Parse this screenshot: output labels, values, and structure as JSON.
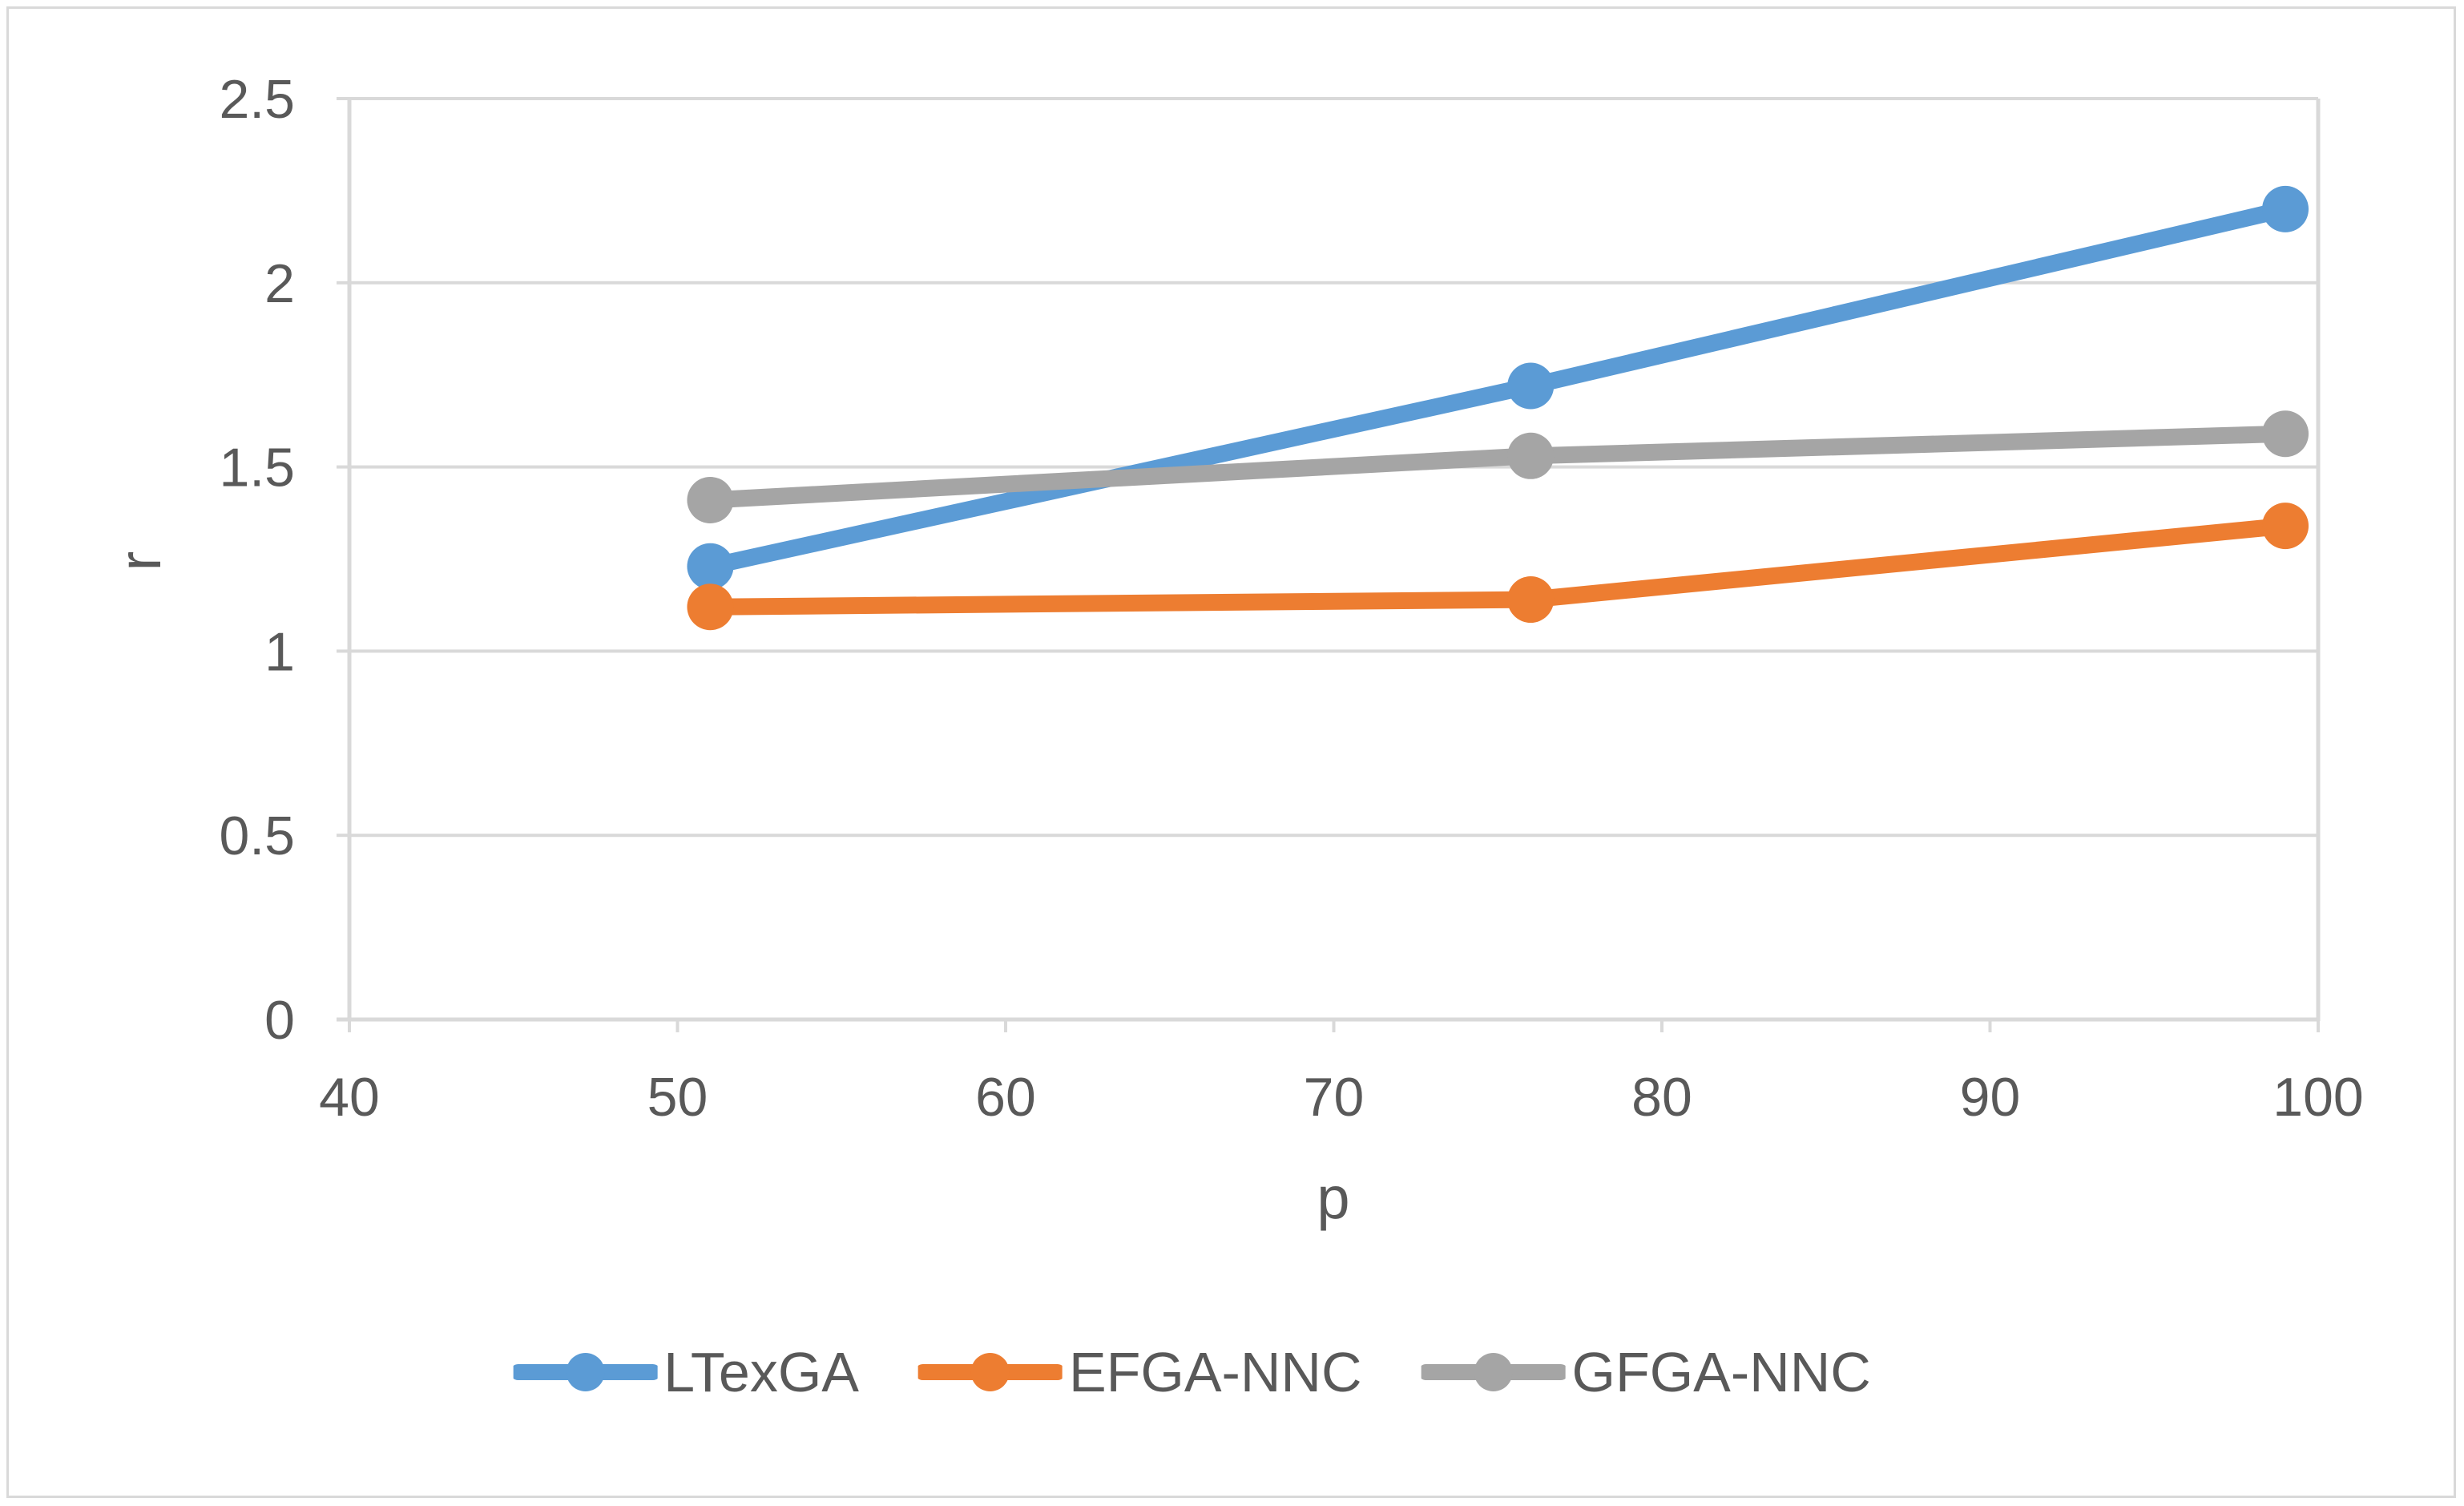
{
  "chart_data": {
    "type": "line",
    "title": "",
    "xlabel": "p",
    "ylabel": "r",
    "x": [
      51,
      76,
      99
    ],
    "series": [
      {
        "name": "LTexGA",
        "color": "#5B9BD5",
        "values": [
          1.23,
          1.72,
          2.2
        ]
      },
      {
        "name": "EFGA-NNC",
        "color": "#ED7D31",
        "values": [
          1.12,
          1.14,
          1.34
        ]
      },
      {
        "name": "GFGA-NNC",
        "color": "#A5A5A5",
        "values": [
          1.41,
          1.53,
          1.59
        ]
      }
    ],
    "xlim": [
      40,
      100
    ],
    "ylim": [
      0,
      2.5
    ],
    "x_ticks": [
      "40",
      "50",
      "60",
      "70",
      "80",
      "90",
      "100"
    ],
    "y_ticks": [
      "0",
      "0.5",
      "1",
      "1.5",
      "2",
      "2.5"
    ],
    "grid": "horizontal gridlines on, vertical off",
    "legend_position": "bottom-center",
    "marker": "circle"
  },
  "style": {
    "grid_color": "#D9D9D9",
    "axis_color": "#D9D9D9",
    "text_color": "#595959",
    "background": "#FFFFFF",
    "frame_border_color": "#D9D9D9"
  }
}
